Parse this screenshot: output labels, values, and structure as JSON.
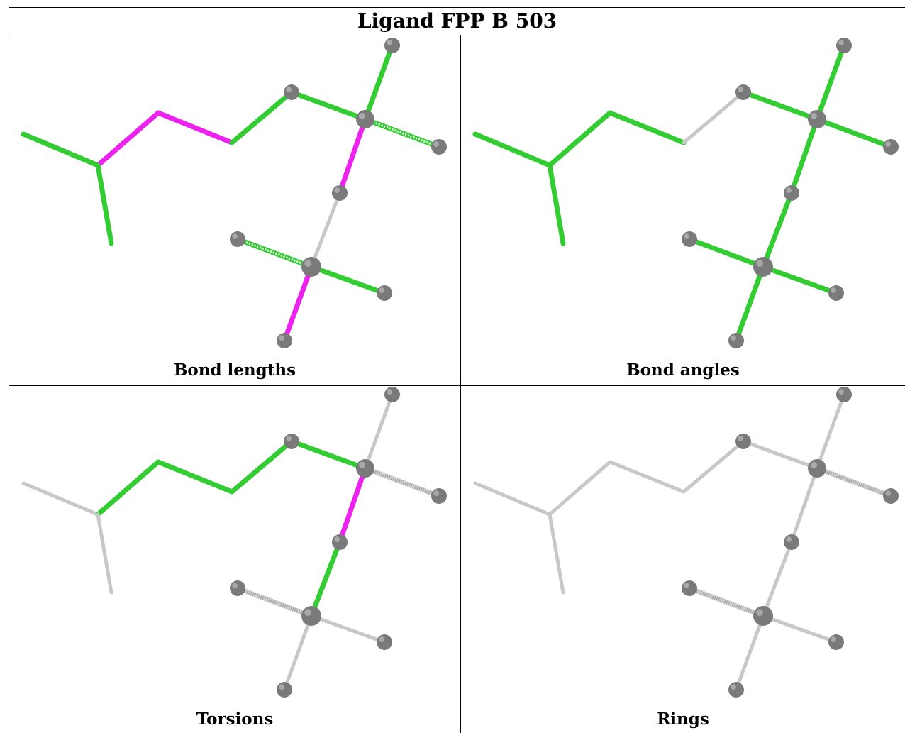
{
  "title": "Ligand FPP B 503",
  "panels": [
    {
      "caption": "Bond lengths",
      "colors": {
        "b1": "green",
        "b2": "magenta",
        "b3": "magenta",
        "b4": "green",
        "b5": "green",
        "b6": "green",
        "b7": "stripe",
        "b8": "magenta",
        "b9": "gray",
        "b10": "stripe",
        "b11": "green",
        "b12": "magenta",
        "b13": "green"
      }
    },
    {
      "caption": "Bond angles",
      "colors": {
        "b1": "green",
        "b2": "green",
        "b3": "green",
        "b4": "gray",
        "b5": "green",
        "b6": "green",
        "b7": "green",
        "b8": "green",
        "b9": "green",
        "b10": "green",
        "b11": "green",
        "b12": "green",
        "b13": "green"
      }
    },
    {
      "caption": "Torsions",
      "colors": {
        "b1": "gray",
        "b2": "green",
        "b3": "green",
        "b4": "green",
        "b5": "green",
        "b6": "gray",
        "b7": "hatch",
        "b8": "magenta",
        "b9": "green",
        "b10": "hatch",
        "b11": "gray",
        "b12": "gray",
        "b13": "gray"
      }
    },
    {
      "caption": "Rings",
      "colors": {
        "b1": "gray",
        "b2": "gray",
        "b3": "gray",
        "b4": "gray",
        "b5": "gray",
        "b6": "gray",
        "b7": "hatch",
        "b8": "gray",
        "b9": "gray",
        "b10": "hatch",
        "b11": "gray",
        "b12": "gray",
        "b13": "gray"
      }
    }
  ],
  "palette": {
    "green": "#33cc33",
    "magenta": "#ee22ee",
    "gray": "#c8c8c8",
    "atom": "#7a7a7a"
  }
}
